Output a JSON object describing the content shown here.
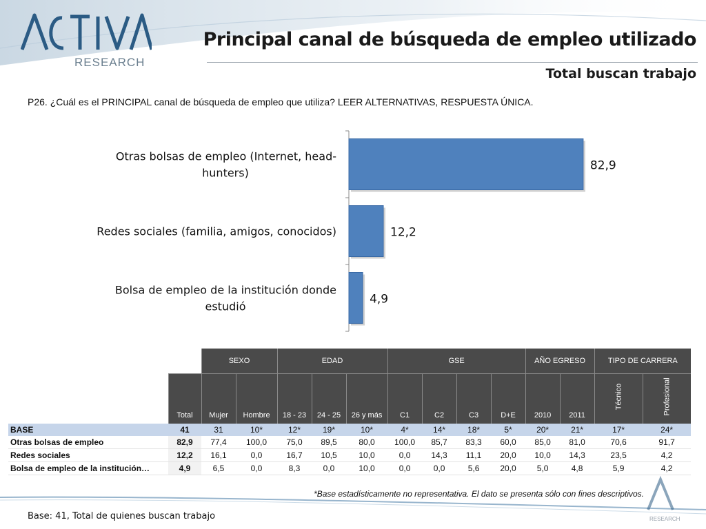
{
  "brand": {
    "name": "ACTIVA",
    "sub": "RESEARCH",
    "footer_mark": "RESEARCH"
  },
  "header": {
    "title": "Principal canal de búsqueda de empleo utilizado",
    "subtitle": "Total buscan trabajo"
  },
  "question": "P26. ¿Cuál es el PRINCIPAL canal de búsqueda de empleo que utiliza?  LEER ALTERNATIVAS, RESPUESTA ÚNICA.",
  "colors": {
    "bar": "#4f81bd",
    "bar_edge": "#3a6aa6",
    "header_bg": "#4a4a4a",
    "base_row": "#c6d5ea"
  },
  "chart_data": {
    "type": "bar",
    "orientation": "horizontal",
    "categories": [
      [
        "Otras bolsas de empleo (Internet, head-",
        "hunters)"
      ],
      [
        "Redes sociales (familia, amigos, conocidos)"
      ],
      [
        "Bolsa de empleo de la institución donde",
        "estudió"
      ]
    ],
    "values": [
      82.9,
      12.2,
      4.9
    ],
    "value_labels": [
      "82,9",
      "12,2",
      "4,9"
    ],
    "xlim": [
      0,
      100
    ]
  },
  "table": {
    "groups": [
      {
        "label": "",
        "span": 2
      },
      {
        "label": "SEXO",
        "span": 2
      },
      {
        "label": "EDAD",
        "span": 3
      },
      {
        "label": "GSE",
        "span": 4
      },
      {
        "label": "AÑO EGRESO",
        "span": 2
      },
      {
        "label": "TIPO DE CARRERA",
        "span": 2
      }
    ],
    "columns": [
      "Total",
      "Mujer",
      "Hombre",
      "18 - 23",
      "24 - 25",
      "26 y más",
      "C1",
      "C2",
      "C3",
      "D+E",
      "2010",
      "2011",
      "Técnico",
      "Profesional"
    ],
    "rows": [
      {
        "label": "BASE",
        "cells": [
          "41",
          "31",
          "10*",
          "12*",
          "19*",
          "10*",
          "4*",
          "14*",
          "18*",
          "5*",
          "20*",
          "21*",
          "17*",
          "24*"
        ]
      },
      {
        "label": "Otras bolsas de empleo",
        "cells": [
          "82,9",
          "77,4",
          "100,0",
          "75,0",
          "89,5",
          "80,0",
          "100,0",
          "85,7",
          "83,3",
          "60,0",
          "85,0",
          "81,0",
          "70,6",
          "91,7"
        ]
      },
      {
        "label": "Redes sociales",
        "cells": [
          "12,2",
          "16,1",
          "0,0",
          "16,7",
          "10,5",
          "10,0",
          "0,0",
          "14,3",
          "11,1",
          "20,0",
          "10,0",
          "14,3",
          "23,5",
          "4,2"
        ]
      },
      {
        "label": "Bolsa de empleo de la institución…",
        "cells": [
          "4,9",
          "6,5",
          "0,0",
          "8,3",
          "0,0",
          "10,0",
          "0,0",
          "0,0",
          "5,6",
          "20,0",
          "5,0",
          "4,8",
          "5,9",
          "4,2"
        ]
      }
    ]
  },
  "note": "*Base estadísticamente no representativa. El dato se presenta sólo con fines descriptivos.",
  "base_note": "Base: 41, Total de quienes buscan trabajo"
}
